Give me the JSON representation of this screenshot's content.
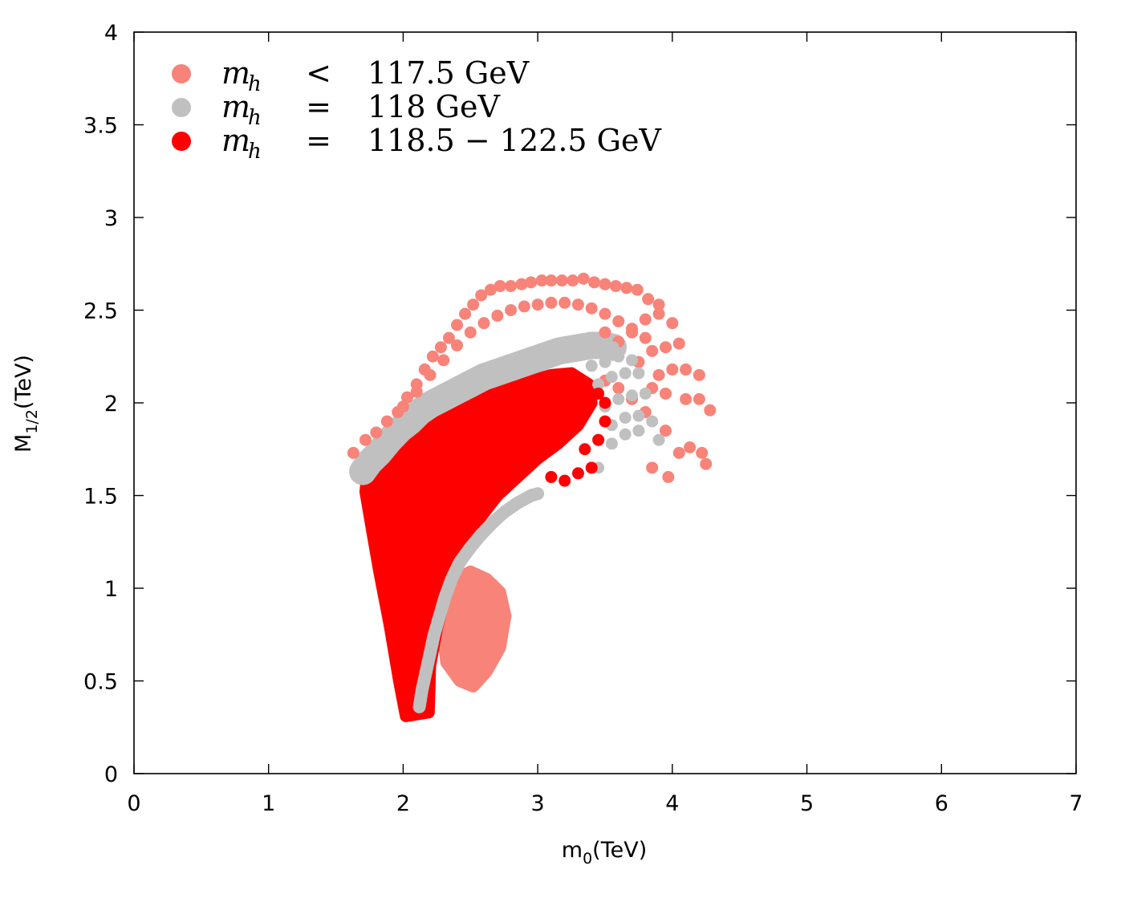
{
  "chart_data": {
    "type": "scatter",
    "xlabel": "m0(TeV)",
    "xlabel_main": "m",
    "xlabel_sub": "0",
    "xlabel_unit": "(TeV)",
    "ylabel_main": "M",
    "ylabel_sub": "1/2",
    "ylabel_unit": "(TeV)",
    "xlim": [
      0,
      7
    ],
    "ylim": [
      0,
      4
    ],
    "xticks": [
      "0",
      "1",
      "2",
      "3",
      "4",
      "5",
      "6",
      "7"
    ],
    "yticks": [
      "0",
      "0.5",
      "1",
      "1.5",
      "2",
      "2.5",
      "3",
      "3.5",
      "4"
    ],
    "grid": false,
    "legend_position": "top-left",
    "colors": {
      "salmon": "#f88379",
      "gray": "#c0c0c0",
      "red": "#ff0000"
    },
    "series": [
      {
        "key": "low",
        "color": "#f88379",
        "legend": {
          "symbol": "m",
          "sub": "h",
          "relation": "<",
          "value": "117.5 GeV"
        },
        "bands": [
          {
            "label": "upper-arc",
            "points": [
              [
                1.63,
                1.73
              ],
              [
                1.72,
                1.8
              ],
              [
                1.8,
                1.84
              ],
              [
                1.88,
                1.9
              ],
              [
                1.96,
                1.95
              ],
              [
                2.03,
                2.03
              ],
              [
                2.1,
                2.1
              ],
              [
                2.16,
                2.18
              ],
              [
                2.22,
                2.25
              ],
              [
                2.28,
                2.3
              ],
              [
                2.34,
                2.35
              ],
              [
                2.4,
                2.42
              ],
              [
                2.46,
                2.48
              ],
              [
                2.52,
                2.53
              ],
              [
                2.58,
                2.58
              ],
              [
                2.65,
                2.61
              ],
              [
                2.72,
                2.63
              ],
              [
                2.8,
                2.63
              ],
              [
                2.88,
                2.64
              ],
              [
                2.95,
                2.65
              ],
              [
                3.03,
                2.66
              ],
              [
                3.1,
                2.66
              ],
              [
                3.18,
                2.66
              ],
              [
                3.26,
                2.66
              ],
              [
                3.34,
                2.67
              ],
              [
                3.42,
                2.65
              ],
              [
                3.5,
                2.64
              ],
              [
                3.58,
                2.63
              ],
              [
                3.66,
                2.62
              ],
              [
                3.74,
                2.61
              ],
              [
                3.82,
                2.56
              ],
              [
                3.9,
                2.53
              ]
            ]
          },
          {
            "label": "inner-arc",
            "points": [
              [
                2.0,
                1.98
              ],
              [
                2.1,
                2.06
              ],
              [
                2.2,
                2.15
              ],
              [
                2.3,
                2.23
              ],
              [
                2.4,
                2.31
              ],
              [
                2.5,
                2.38
              ],
              [
                2.6,
                2.43
              ],
              [
                2.7,
                2.47
              ],
              [
                2.8,
                2.5
              ],
              [
                2.9,
                2.52
              ],
              [
                3.0,
                2.53
              ],
              [
                3.1,
                2.54
              ],
              [
                3.2,
                2.54
              ],
              [
                3.3,
                2.53
              ],
              [
                3.4,
                2.51
              ],
              [
                3.5,
                2.48
              ],
              [
                3.6,
                2.44
              ],
              [
                3.7,
                2.4
              ],
              [
                3.8,
                2.35
              ]
            ]
          },
          {
            "label": "outer-rays",
            "points": [
              [
                3.5,
                2.38
              ],
              [
                3.6,
                2.33
              ],
              [
                3.7,
                2.38
              ],
              [
                3.8,
                2.45
              ],
              [
                3.9,
                2.48
              ],
              [
                4.0,
                2.43
              ],
              [
                3.75,
                2.22
              ],
              [
                3.85,
                2.28
              ],
              [
                3.95,
                2.3
              ],
              [
                4.05,
                2.32
              ],
              [
                4.1,
                2.18
              ],
              [
                4.0,
                2.18
              ],
              [
                3.9,
                2.15
              ],
              [
                4.2,
                2.15
              ],
              [
                4.1,
                2.02
              ],
              [
                4.2,
                2.02
              ],
              [
                4.28,
                1.96
              ],
              [
                3.95,
                2.05
              ],
              [
                3.85,
                2.08
              ],
              [
                3.95,
                1.85
              ],
              [
                4.05,
                1.73
              ],
              [
                4.13,
                1.76
              ],
              [
                4.22,
                1.73
              ],
              [
                4.25,
                1.67
              ],
              [
                3.85,
                1.65
              ],
              [
                3.97,
                1.6
              ],
              [
                3.8,
                1.95
              ],
              [
                3.7,
                2.02
              ],
              [
                3.6,
                2.08
              ],
              [
                3.5,
                2.12
              ]
            ]
          },
          {
            "label": "lower-blob",
            "center": [
              2.55,
              0.8
            ],
            "region": [
              [
                2.32,
                0.6
              ],
              [
                2.42,
                0.5
              ],
              [
                2.52,
                0.47
              ],
              [
                2.62,
                0.55
              ],
              [
                2.72,
                0.68
              ],
              [
                2.76,
                0.85
              ],
              [
                2.72,
                0.98
              ],
              [
                2.62,
                1.05
              ],
              [
                2.5,
                1.09
              ],
              [
                2.4,
                1.05
              ],
              [
                2.33,
                0.92
              ],
              [
                2.3,
                0.75
              ]
            ]
          }
        ]
      },
      {
        "key": "mid",
        "color": "#c0c0c0",
        "legend": {
          "symbol": "m",
          "sub": "h",
          "relation": "=",
          "value": "118 GeV"
        },
        "bands": [
          {
            "label": "main-band",
            "points": [
              [
                1.7,
                1.63
              ],
              [
                1.75,
                1.68
              ],
              [
                1.82,
                1.73
              ],
              [
                1.9,
                1.8
              ],
              [
                1.98,
                1.86
              ],
              [
                2.05,
                1.9
              ],
              [
                2.12,
                1.95
              ],
              [
                2.2,
                1.99
              ],
              [
                2.28,
                2.02
              ],
              [
                2.36,
                2.05
              ],
              [
                2.44,
                2.08
              ],
              [
                2.52,
                2.11
              ],
              [
                2.6,
                2.14
              ],
              [
                2.68,
                2.16
              ],
              [
                2.76,
                2.18
              ],
              [
                2.84,
                2.2
              ],
              [
                2.92,
                2.22
              ],
              [
                3.0,
                2.24
              ],
              [
                3.08,
                2.26
              ],
              [
                3.16,
                2.28
              ],
              [
                3.24,
                2.29
              ],
              [
                3.32,
                2.3
              ],
              [
                3.4,
                2.31
              ],
              [
                3.48,
                2.31
              ],
              [
                3.56,
                2.3
              ]
            ]
          },
          {
            "label": "outer-arcs",
            "points": [
              [
                3.4,
                2.2
              ],
              [
                3.5,
                2.22
              ],
              [
                3.6,
                2.25
              ],
              [
                3.7,
                2.23
              ],
              [
                3.45,
                2.1
              ],
              [
                3.55,
                2.14
              ],
              [
                3.65,
                2.16
              ],
              [
                3.75,
                2.16
              ],
              [
                3.5,
                1.98
              ],
              [
                3.6,
                2.02
              ],
              [
                3.7,
                2.04
              ],
              [
                3.8,
                2.05
              ],
              [
                3.55,
                1.88
              ],
              [
                3.65,
                1.92
              ],
              [
                3.75,
                1.93
              ],
              [
                3.85,
                1.9
              ],
              [
                3.9,
                1.8
              ],
              [
                3.45,
                1.65
              ],
              [
                3.55,
                1.78
              ],
              [
                3.65,
                1.83
              ],
              [
                3.75,
                1.85
              ]
            ]
          },
          {
            "label": "lower-arc",
            "points": [
              [
                2.12,
                0.36
              ],
              [
                2.14,
                0.45
              ],
              [
                2.17,
                0.55
              ],
              [
                2.2,
                0.65
              ],
              [
                2.23,
                0.75
              ],
              [
                2.27,
                0.85
              ],
              [
                2.31,
                0.95
              ],
              [
                2.36,
                1.05
              ],
              [
                2.42,
                1.14
              ],
              [
                2.5,
                1.22
              ],
              [
                2.58,
                1.29
              ],
              [
                2.66,
                1.35
              ],
              [
                2.75,
                1.41
              ],
              [
                2.85,
                1.46
              ],
              [
                2.95,
                1.5
              ],
              [
                3.0,
                1.51
              ]
            ]
          }
        ]
      },
      {
        "key": "high",
        "color": "#ff0000",
        "legend": {
          "symbol": "m",
          "sub": "h",
          "relation": "=",
          "value": "118.5 − 122.5 GeV"
        },
        "bands": [
          {
            "label": "filled-region",
            "region": [
              [
                1.73,
                1.6
              ],
              [
                1.9,
                1.72
              ],
              [
                2.1,
                1.84
              ],
              [
                2.3,
                1.92
              ],
              [
                2.5,
                1.99
              ],
              [
                2.7,
                2.06
              ],
              [
                2.9,
                2.11
              ],
              [
                3.1,
                2.15
              ],
              [
                3.25,
                2.16
              ],
              [
                3.38,
                2.1
              ],
              [
                3.4,
                2.0
              ],
              [
                3.3,
                1.88
              ],
              [
                3.15,
                1.78
              ],
              [
                3.0,
                1.7
              ],
              [
                2.85,
                1.6
              ],
              [
                2.7,
                1.5
              ],
              [
                2.55,
                1.36
              ],
              [
                2.42,
                1.18
              ],
              [
                2.32,
                0.98
              ],
              [
                2.25,
                0.78
              ],
              [
                2.2,
                0.58
              ],
              [
                2.19,
                0.33
              ],
              [
                2.02,
                0.31
              ],
              [
                1.97,
                0.5
              ],
              [
                1.9,
                0.8
              ],
              [
                1.82,
                1.1
              ],
              [
                1.76,
                1.35
              ],
              [
                1.72,
                1.52
              ]
            ]
          },
          {
            "label": "fringe",
            "points": [
              [
                3.4,
                1.65
              ],
              [
                3.3,
                1.62
              ],
              [
                3.35,
                1.75
              ],
              [
                3.45,
                1.8
              ],
              [
                3.5,
                1.9
              ],
              [
                3.5,
                2.0
              ],
              [
                3.45,
                2.05
              ],
              [
                3.2,
                1.58
              ],
              [
                3.1,
                1.6
              ]
            ]
          }
        ]
      }
    ]
  }
}
